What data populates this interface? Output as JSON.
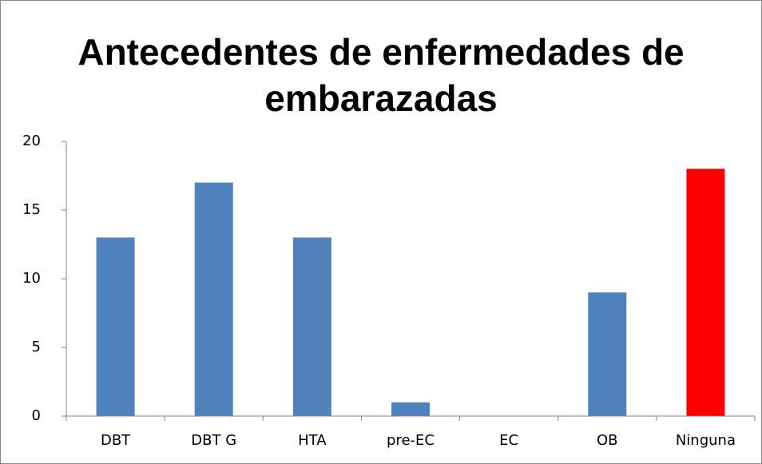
{
  "chart_data": {
    "type": "bar",
    "title": "Antecedentes de enfermedades de embarazadas",
    "categories": [
      "DBT",
      "DBT G",
      "HTA",
      "pre-EC",
      "EC",
      "OB",
      "Ninguna"
    ],
    "values": [
      13,
      17,
      13,
      1,
      0,
      9,
      18
    ],
    "colors": [
      "#4f81bd",
      "#4f81bd",
      "#4f81bd",
      "#4f81bd",
      "#4f81bd",
      "#4f81bd",
      "#ff0000"
    ],
    "ylim": [
      0,
      20
    ],
    "yticks": [
      0,
      5,
      10,
      15,
      20
    ],
    "grid": false
  }
}
